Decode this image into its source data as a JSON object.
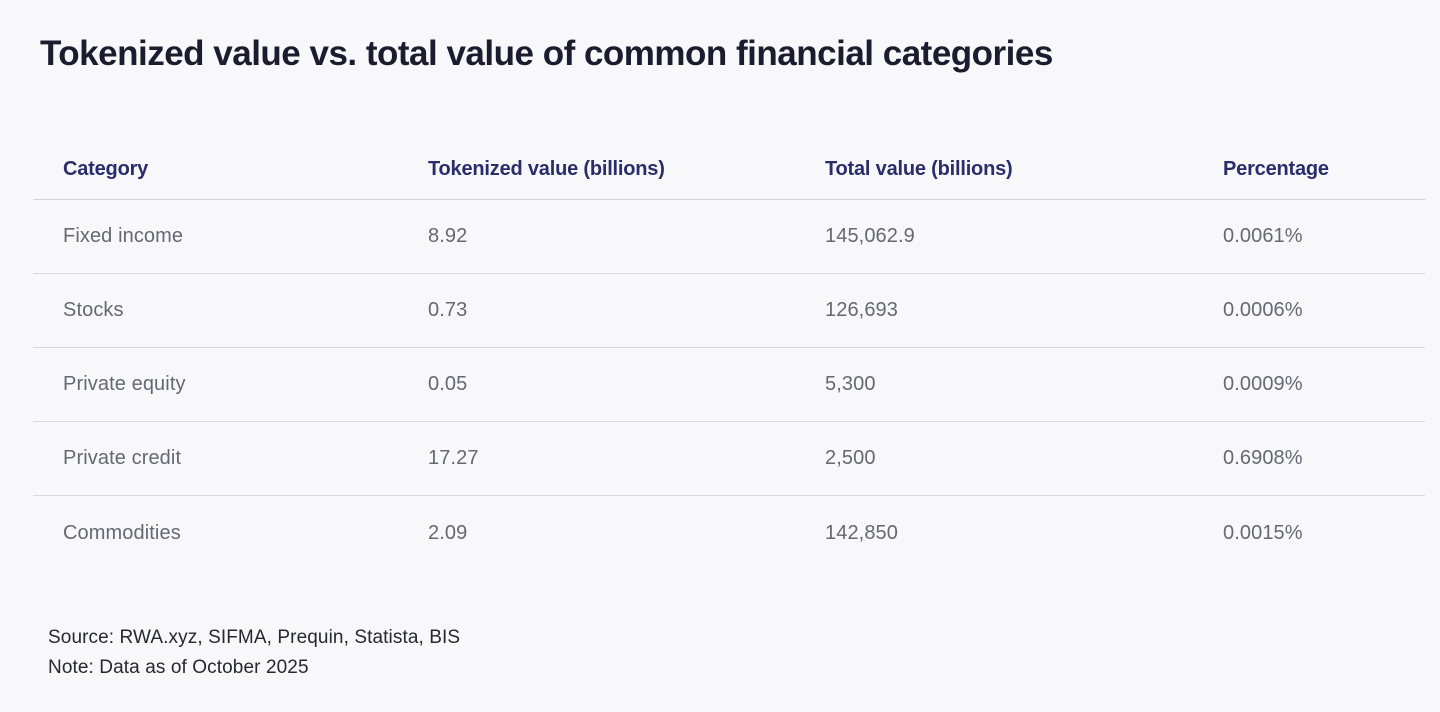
{
  "title": "Tokenized value vs. total value of common financial categories",
  "chart_data": {
    "type": "table",
    "title": "Tokenized value vs. total value of common financial categories",
    "columns": [
      "Category",
      "Tokenized value (billions)",
      "Total value (billions)",
      "Percentage"
    ],
    "rows": [
      {
        "category": "Fixed income",
        "tokenized_value_billions": "8.92",
        "total_value_billions": "145,062.9",
        "percentage": "0.0061%"
      },
      {
        "category": "Stocks",
        "tokenized_value_billions": "0.73",
        "total_value_billions": "126,693",
        "percentage": "0.0006%"
      },
      {
        "category": "Private equity",
        "tokenized_value_billions": "0.05",
        "total_value_billions": "5,300",
        "percentage": "0.0009%"
      },
      {
        "category": "Private credit",
        "tokenized_value_billions": "17.27",
        "total_value_billions": "2,500",
        "percentage": "0.6908%"
      },
      {
        "category": "Commodities",
        "tokenized_value_billions": "2.09",
        "total_value_billions": "142,850",
        "percentage": "0.0015%"
      }
    ],
    "source": "Source: RWA.xyz, SIFMA, Prequin, Statista, BIS",
    "note": "Note: Data as of October 2025"
  },
  "colors": {
    "background": "#f8f8fb",
    "title_text": "#1c1c2e",
    "header_text": "#2b2d6b",
    "row_text": "#676773",
    "divider": "#d8d8e0",
    "footer_text": "#27272f"
  }
}
